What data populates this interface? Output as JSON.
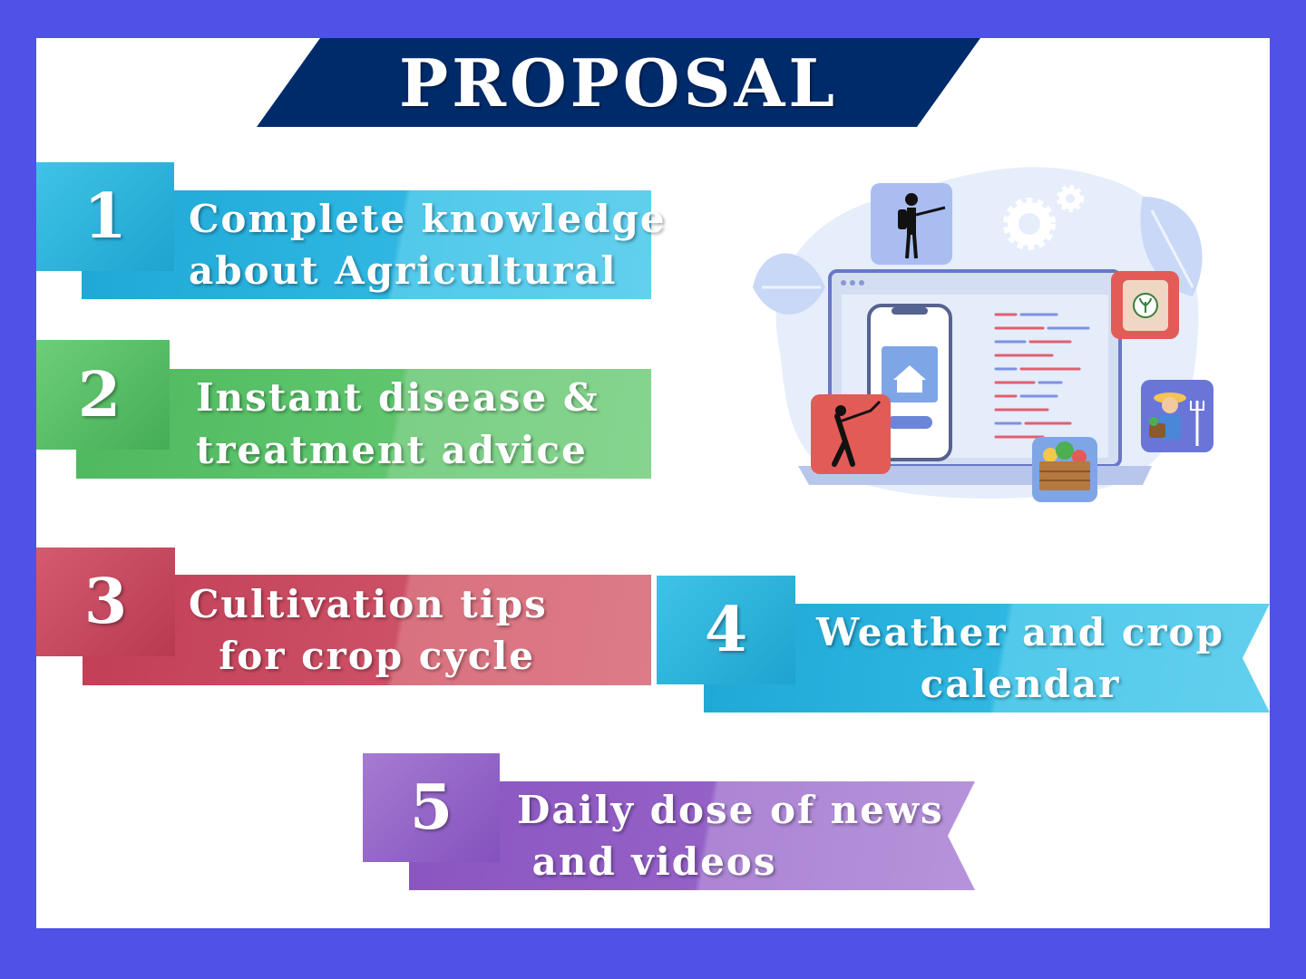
{
  "title": "PROPOSAL",
  "colors": {
    "frame": "#4f52e6",
    "title_banner": "#002b6b",
    "cyan": "#28b6dd",
    "green": "#5fc66e",
    "red": "#c8485d",
    "purple": "#9461c7"
  },
  "items": [
    {
      "number": "1",
      "line1": "Complete knowledge",
      "line2": "about Agricultural",
      "color": "cyan"
    },
    {
      "number": "2",
      "line1": "Instant disease &",
      "line2": "treatment advice",
      "color": "green"
    },
    {
      "number": "3",
      "line1": "Cultivation tips",
      "line2": "  for crop cycle",
      "color": "red"
    },
    {
      "number": "4",
      "line1": "Weather and crop",
      "line2": "calendar",
      "color": "cyan"
    },
    {
      "number": "5",
      "line1": "Daily dose of news",
      "line2": " and videos",
      "color": "purple"
    }
  ],
  "illustration": {
    "icons": [
      "sprayer-icon",
      "gear-icon",
      "seed-bag-icon",
      "harvester-icon",
      "farmer-icon",
      "fruit-crate-icon",
      "home-icon"
    ]
  }
}
